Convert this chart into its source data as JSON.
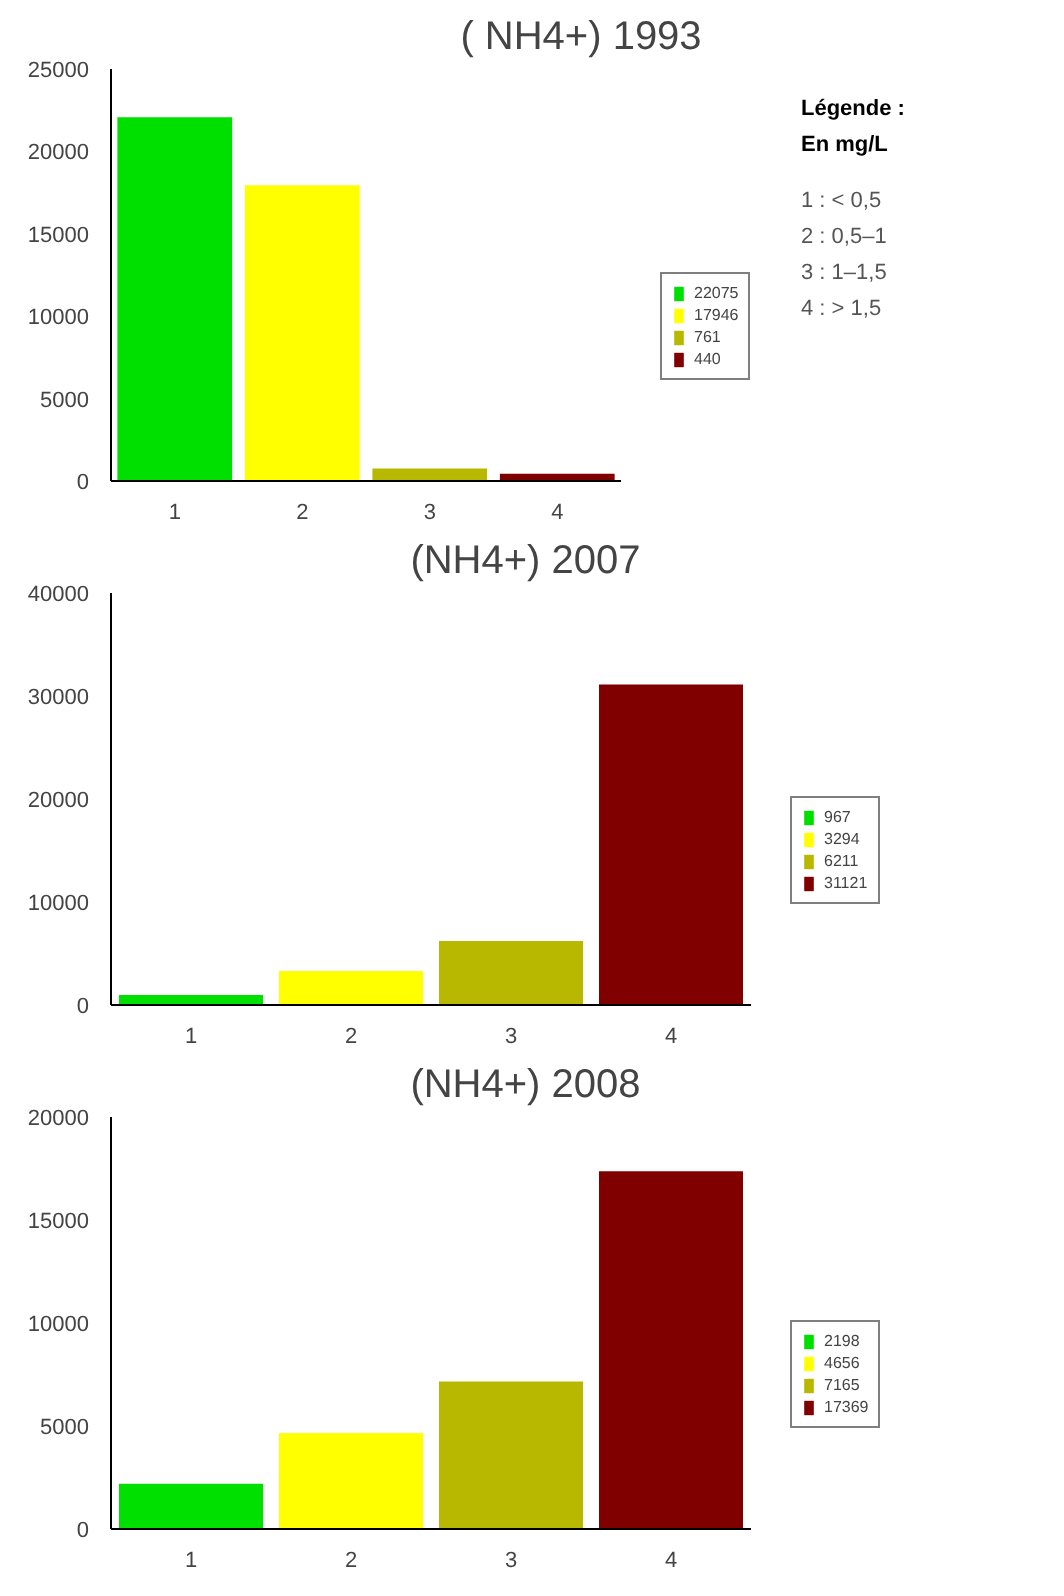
{
  "chart_data": [
    {
      "type": "bar",
      "title": "( NH4+) 1993",
      "categories": [
        "1",
        "2",
        "3",
        "4"
      ],
      "ylim": [
        0,
        25000
      ],
      "yticks": [
        0,
        5000,
        10000,
        15000,
        20000,
        25000
      ],
      "legend": "right",
      "annotations": [
        "Légende :",
        "En mg/L",
        "1 :  < 0,5",
        "2 : 0,5–1",
        "3 : 1–1,5",
        "4 :  > 1,5"
      ],
      "series": [
        {
          "name": "22075",
          "color": "#00e000",
          "values": [
            22075,
            null,
            null,
            null
          ]
        },
        {
          "name": "17946",
          "color": "#ffff00",
          "values": [
            null,
            17946,
            null,
            null
          ]
        },
        {
          "name": "761",
          "color": "#b8b800",
          "values": [
            null,
            null,
            761,
            null
          ]
        },
        {
          "name": "440",
          "color": "#800000",
          "values": [
            null,
            null,
            null,
            440
          ]
        }
      ]
    },
    {
      "type": "bar",
      "title": "(NH4+)  2007",
      "categories": [
        "1",
        "2",
        "3",
        "4"
      ],
      "ylim": [
        0,
        40000
      ],
      "yticks": [
        0,
        10000,
        20000,
        30000,
        40000
      ],
      "legend": "right",
      "series": [
        {
          "name": "967",
          "color": "#00e000",
          "values": [
            967,
            null,
            null,
            null
          ]
        },
        {
          "name": "3294",
          "color": "#ffff00",
          "values": [
            null,
            3294,
            null,
            null
          ]
        },
        {
          "name": "6211",
          "color": "#b8b800",
          "values": [
            null,
            null,
            6211,
            null
          ]
        },
        {
          "name": "31121",
          "color": "#800000",
          "values": [
            null,
            null,
            null,
            31121
          ]
        }
      ]
    },
    {
      "type": "bar",
      "title": "(NH4+)  2008",
      "categories": [
        "1",
        "2",
        "3",
        "4"
      ],
      "ylim": [
        0,
        20000
      ],
      "yticks": [
        0,
        5000,
        10000,
        15000,
        20000
      ],
      "legend": "right",
      "series": [
        {
          "name": "2198",
          "color": "#00e000",
          "values": [
            2198,
            null,
            null,
            null
          ]
        },
        {
          "name": "4656",
          "color": "#ffff00",
          "values": [
            null,
            4656,
            null,
            null
          ]
        },
        {
          "name": "7165",
          "color": "#b8b800",
          "values": [
            null,
            null,
            7165,
            null
          ]
        },
        {
          "name": "17369",
          "color": "#800000",
          "values": [
            null,
            null,
            null,
            17369
          ]
        }
      ]
    }
  ]
}
